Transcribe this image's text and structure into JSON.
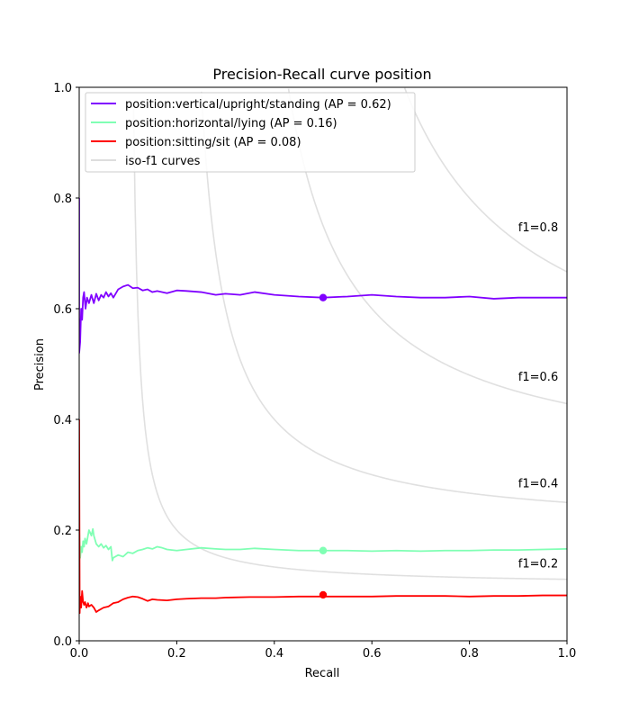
{
  "chart_data": {
    "type": "line",
    "title": "Precision-Recall curve position",
    "xlabel": "Recall",
    "ylabel": "Precision",
    "xlim": [
      0,
      1
    ],
    "ylim": [
      0,
      1
    ],
    "xticks": [
      0,
      0.2,
      0.4,
      0.6,
      0.8,
      1.0
    ],
    "xtick_labels": [
      "0.0",
      "0.2",
      "0.4",
      "0.6",
      "0.8",
      "1.0"
    ],
    "yticks": [
      0,
      0.2,
      0.4,
      0.6,
      0.8,
      1.0
    ],
    "ytick_labels": [
      "0.0",
      "0.2",
      "0.4",
      "0.6",
      "0.8",
      "1.0"
    ],
    "grid": false,
    "legend_position": "upper-left",
    "legend": [
      {
        "label": "position:vertical/upright/standing (AP = 0.62)",
        "color": "#8000ff"
      },
      {
        "label": "position:horizontal/lying (AP = 0.16)",
        "color": "#80ffb4"
      },
      {
        "label": "position:sitting/sit (AP = 0.08)",
        "color": "#ff0000"
      },
      {
        "label": "iso-f1 curves",
        "color": "#dddddd"
      }
    ],
    "iso_f1": {
      "values": [
        0.2,
        0.4,
        0.6,
        0.8
      ],
      "labels": [
        "f1=0.2",
        "f1=0.4",
        "f1=0.6",
        "f1=0.8"
      ],
      "color": "#e0e0e0"
    },
    "series": [
      {
        "name": "position:vertical/upright/standing (AP = 0.62)",
        "color": "#8000ff",
        "recall": [
          0,
          0,
          0.002,
          0.004,
          0.006,
          0.008,
          0.01,
          0.013,
          0.016,
          0.02,
          0.025,
          0.03,
          0.035,
          0.04,
          0.045,
          0.05,
          0.055,
          0.06,
          0.065,
          0.07,
          0.08,
          0.09,
          0.1,
          0.11,
          0.12,
          0.13,
          0.14,
          0.15,
          0.16,
          0.18,
          0.2,
          0.22,
          0.25,
          0.28,
          0.3,
          0.33,
          0.36,
          0.4,
          0.45,
          0.5,
          0.55,
          0.6,
          0.65,
          0.7,
          0.75,
          0.8,
          0.85,
          0.9,
          0.95,
          1.0
        ],
        "precision": [
          0.8,
          0.52,
          0.54,
          0.6,
          0.58,
          0.62,
          0.63,
          0.6,
          0.62,
          0.61,
          0.625,
          0.61,
          0.627,
          0.615,
          0.625,
          0.62,
          0.63,
          0.622,
          0.628,
          0.62,
          0.635,
          0.64,
          0.643,
          0.637,
          0.638,
          0.633,
          0.635,
          0.63,
          0.632,
          0.628,
          0.633,
          0.632,
          0.63,
          0.625,
          0.627,
          0.625,
          0.63,
          0.625,
          0.622,
          0.62,
          0.622,
          0.625,
          0.622,
          0.62,
          0.62,
          0.622,
          0.618,
          0.62,
          0.62,
          0.62
        ],
        "marker": {
          "x": 0.5,
          "y": 0.62
        }
      },
      {
        "name": "position:horizontal/lying (AP = 0.16)",
        "color": "#80ffb4",
        "recall": [
          0,
          0.002,
          0.004,
          0.006,
          0.008,
          0.01,
          0.012,
          0.015,
          0.018,
          0.02,
          0.025,
          0.028,
          0.03,
          0.035,
          0.04,
          0.045,
          0.05,
          0.055,
          0.06,
          0.065,
          0.068,
          0.07,
          0.08,
          0.09,
          0.1,
          0.11,
          0.12,
          0.13,
          0.14,
          0.15,
          0.16,
          0.17,
          0.18,
          0.2,
          0.22,
          0.25,
          0.28,
          0.3,
          0.33,
          0.36,
          0.4,
          0.45,
          0.5,
          0.55,
          0.6,
          0.65,
          0.7,
          0.75,
          0.8,
          0.85,
          0.9,
          0.95,
          1.0
        ],
        "precision": [
          0.2,
          0.15,
          0.17,
          0.16,
          0.18,
          0.17,
          0.185,
          0.175,
          0.19,
          0.2,
          0.19,
          0.202,
          0.19,
          0.175,
          0.17,
          0.175,
          0.168,
          0.172,
          0.165,
          0.17,
          0.145,
          0.15,
          0.155,
          0.152,
          0.16,
          0.158,
          0.163,
          0.165,
          0.168,
          0.166,
          0.17,
          0.168,
          0.165,
          0.163,
          0.165,
          0.168,
          0.166,
          0.165,
          0.165,
          0.167,
          0.165,
          0.163,
          0.163,
          0.163,
          0.162,
          0.163,
          0.162,
          0.163,
          0.163,
          0.164,
          0.164,
          0.165,
          0.166
        ],
        "marker": {
          "x": 0.5,
          "y": 0.163
        }
      },
      {
        "name": "position:sitting/sit (AP = 0.08)",
        "color": "#ff0000",
        "recall": [
          0,
          0.001,
          0.002,
          0.004,
          0.006,
          0.008,
          0.01,
          0.012,
          0.015,
          0.018,
          0.02,
          0.025,
          0.03,
          0.035,
          0.04,
          0.05,
          0.06,
          0.07,
          0.08,
          0.09,
          0.1,
          0.11,
          0.12,
          0.13,
          0.14,
          0.15,
          0.16,
          0.18,
          0.2,
          0.22,
          0.25,
          0.28,
          0.3,
          0.35,
          0.4,
          0.45,
          0.5,
          0.55,
          0.6,
          0.65,
          0.7,
          0.75,
          0.8,
          0.85,
          0.9,
          0.95,
          1.0
        ],
        "precision": [
          0.4,
          0.05,
          0.08,
          0.06,
          0.09,
          0.07,
          0.065,
          0.07,
          0.06,
          0.068,
          0.062,
          0.065,
          0.06,
          0.052,
          0.055,
          0.06,
          0.062,
          0.068,
          0.07,
          0.075,
          0.078,
          0.08,
          0.079,
          0.076,
          0.072,
          0.075,
          0.074,
          0.073,
          0.075,
          0.076,
          0.077,
          0.077,
          0.078,
          0.079,
          0.079,
          0.08,
          0.08,
          0.08,
          0.08,
          0.081,
          0.081,
          0.081,
          0.08,
          0.081,
          0.081,
          0.082,
          0.082
        ],
        "marker": {
          "x": 0.5,
          "y": 0.083
        }
      }
    ]
  }
}
